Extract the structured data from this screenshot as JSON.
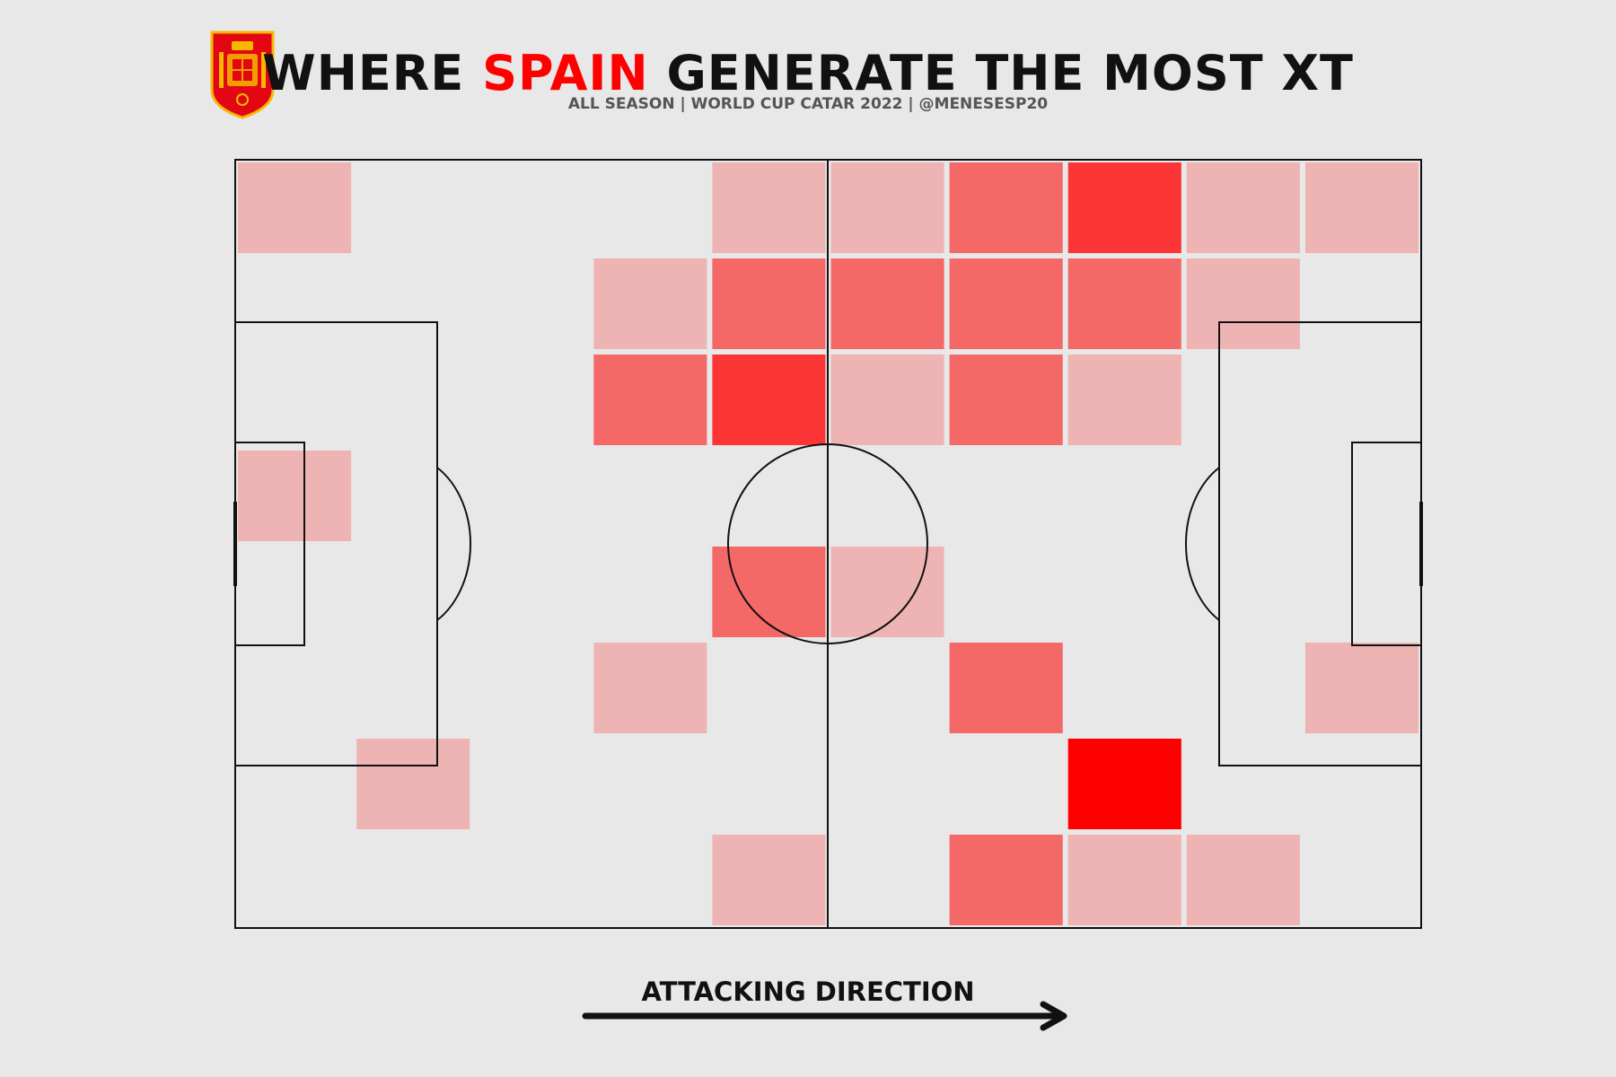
{
  "header": {
    "title_part1": "WHERE ",
    "title_highlight": "SPAIN",
    "title_part2": " GENERATE THE MOST XT",
    "subtitle": "ALL SEASON | WORLD CUP CATAR 2022 | @MENESESP20",
    "logo": "spain-federation-crest-icon"
  },
  "colors": {
    "background": "#e8e8e8",
    "highlight": "#ff0000",
    "level_1": "#eeb4b4",
    "level_2": "#f56868",
    "level_3": "#fc3636",
    "level_4": "#ff0000",
    "lines": "#111111"
  },
  "chart_data": {
    "type": "heatmap",
    "title": "WHERE SPAIN GENERATE THE MOST XT",
    "subtitle": "ALL SEASON | WORLD CUP CATAR 2022 | @MENESESP20",
    "xlabel": "ATTACKING DIRECTION",
    "grid": {
      "columns": 10,
      "rows": 8
    },
    "attack_direction": "left-to-right",
    "scale": "relative intensity, 0 = no value, 4 = highest",
    "cells": [
      [
        1,
        0,
        0,
        0,
        1,
        1,
        2,
        3,
        1,
        1
      ],
      [
        0,
        0,
        0,
        1,
        2,
        2,
        2,
        2,
        1,
        0
      ],
      [
        0,
        0,
        0,
        2,
        3,
        1,
        2,
        1,
        0,
        0
      ],
      [
        1,
        0,
        0,
        0,
        0,
        0,
        0,
        0,
        0,
        0
      ],
      [
        0,
        0,
        0,
        0,
        2,
        1,
        0,
        0,
        0,
        0
      ],
      [
        0,
        0,
        0,
        1,
        0,
        0,
        2,
        0,
        0,
        1
      ],
      [
        0,
        1,
        0,
        0,
        0,
        0,
        0,
        4,
        0,
        0
      ],
      [
        0,
        0,
        0,
        0,
        1,
        0,
        2,
        1,
        1,
        0
      ]
    ]
  },
  "footer": {
    "arrow_label": "ATTACKING DIRECTION"
  }
}
